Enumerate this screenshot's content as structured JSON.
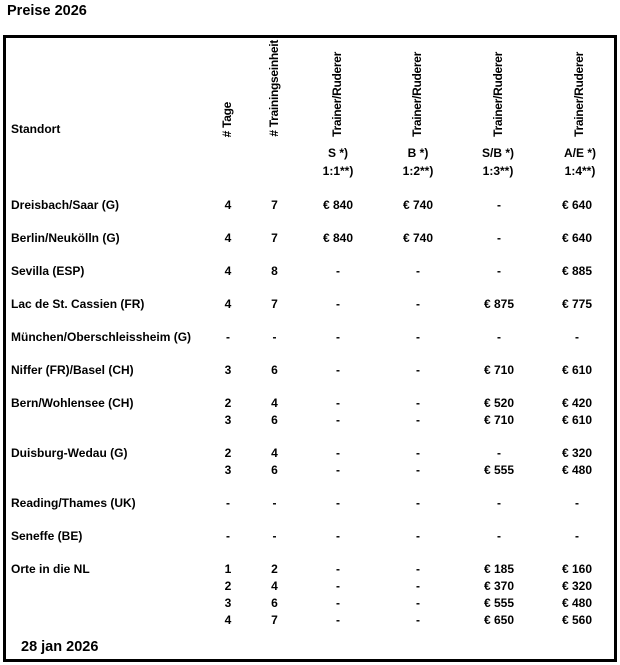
{
  "title": "Preise 2026",
  "footer_date": "28 jan 2026",
  "table": {
    "col_standort": "Standort",
    "col_tage": "# Tage",
    "col_einheit": "# Trainingseinheit",
    "price_cols": [
      {
        "trainer": "Trainer/Ruderer",
        "ratio": "S *)",
        "factor": "1:1**)"
      },
      {
        "trainer": "Trainer/Ruderer",
        "ratio": "B *)",
        "factor": "1:2**)"
      },
      {
        "trainer": "Trainer/Ruderer",
        "ratio": "S/B *)",
        "factor": "1:3**)"
      },
      {
        "trainer": "Trainer/Ruderer",
        "ratio": "A/E *)",
        "factor": "1:4**)"
      }
    ],
    "groups": [
      {
        "standort": "Dreisbach/Saar (G)",
        "lines": [
          [
            "4",
            "7",
            "€ 840",
            "€ 740",
            "-",
            "€ 640"
          ]
        ]
      },
      {
        "standort": "Berlin/Neukölln (G)",
        "lines": [
          [
            "4",
            "7",
            "€ 840",
            "€ 740",
            "-",
            "€ 640"
          ]
        ]
      },
      {
        "standort": "Sevilla (ESP)",
        "lines": [
          [
            "4",
            "8",
            "-",
            "-",
            "-",
            "€ 885"
          ]
        ]
      },
      {
        "standort": "Lac de St. Cassien (FR)",
        "lines": [
          [
            "4",
            "7",
            "-",
            "-",
            "€ 875",
            "€ 775"
          ]
        ]
      },
      {
        "standort": "München/Oberschleissheim (G)",
        "lines": [
          [
            "-",
            "-",
            "-",
            "-",
            "-",
            "-"
          ]
        ]
      },
      {
        "standort": "Niffer (FR)/Basel (CH)",
        "lines": [
          [
            "3",
            "6",
            "-",
            "-",
            "€ 710",
            "€ 610"
          ]
        ]
      },
      {
        "standort": "Bern/Wohlensee (CH)",
        "lines": [
          [
            "2",
            "4",
            "-",
            "-",
            "€ 520",
            "€ 420"
          ],
          [
            "3",
            "6",
            "-",
            "-",
            "€ 710",
            "€ 610"
          ]
        ]
      },
      {
        "standort": "Duisburg-Wedau (G)",
        "lines": [
          [
            "2",
            "4",
            "-",
            "-",
            "-",
            "€ 320"
          ],
          [
            "3",
            "6",
            "-",
            "-",
            "€ 555",
            "€ 480"
          ]
        ]
      },
      {
        "standort": "Reading/Thames (UK)",
        "lines": [
          [
            "-",
            "-",
            "-",
            "-",
            "-",
            "-"
          ]
        ]
      },
      {
        "standort": "Seneffe (BE)",
        "lines": [
          [
            "-",
            "-",
            "-",
            "-",
            "-",
            "-"
          ]
        ]
      },
      {
        "standort": "Orte in die NL",
        "lines": [
          [
            "1",
            "2",
            "-",
            "-",
            "€ 185",
            "€ 160"
          ],
          [
            "2",
            "4",
            "-",
            "-",
            "€ 370",
            "€ 320"
          ],
          [
            "3",
            "6",
            "-",
            "-",
            "€ 555",
            "€ 480"
          ],
          [
            "4",
            "7",
            "-",
            "-",
            "€ 650",
            "€ 560"
          ]
        ]
      }
    ]
  }
}
